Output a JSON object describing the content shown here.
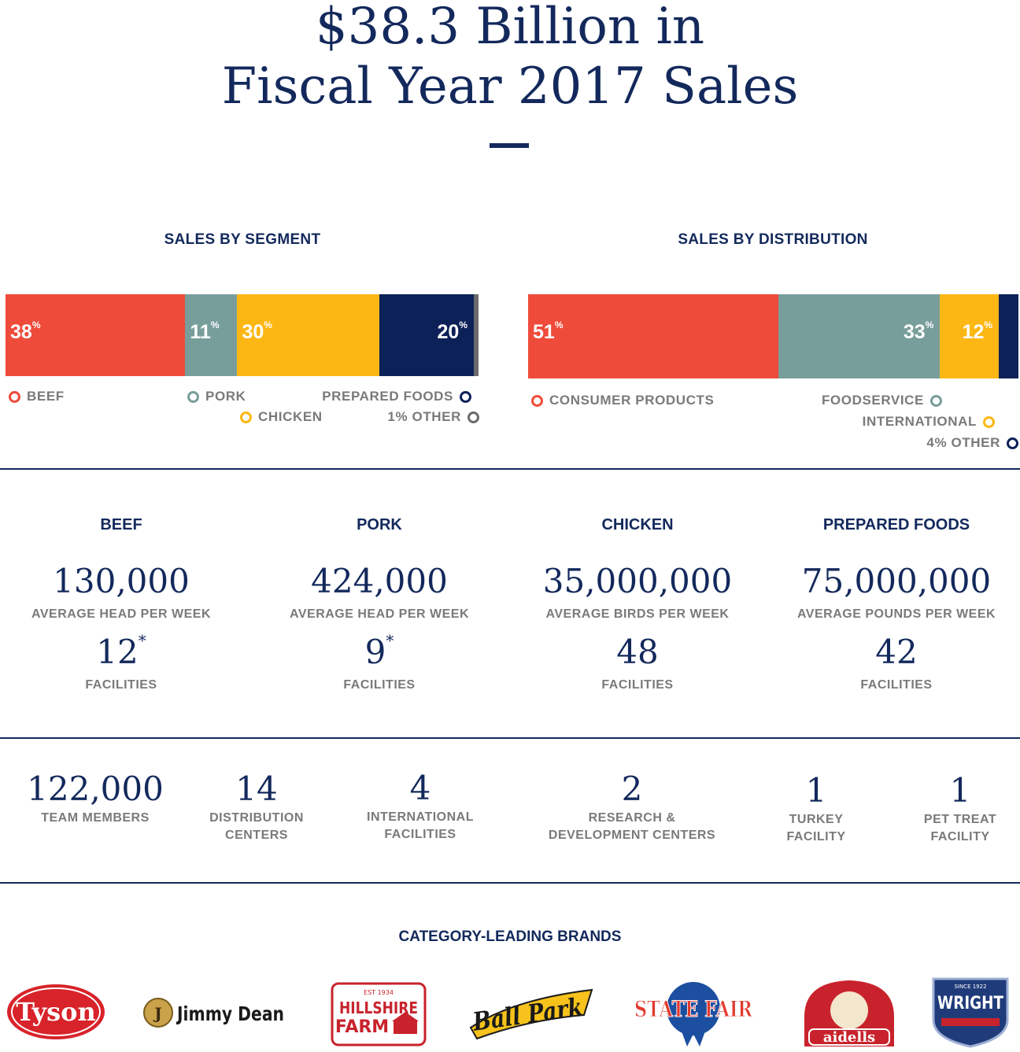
{
  "title": {
    "line1": "$38.3 Billion in",
    "line2": "Fiscal Year 2017 Sales"
  },
  "chart_data": [
    {
      "type": "bar",
      "title": "SALES BY SEGMENT",
      "unit": "%",
      "series": [
        {
          "name": "BEEF",
          "value": 38,
          "label": "38",
          "color": "#ef4b3a"
        },
        {
          "name": "PORK",
          "value": 11,
          "label": "11",
          "color": "#789e9b"
        },
        {
          "name": "CHICKEN",
          "value": 30,
          "label": "30",
          "color": "#fdb714"
        },
        {
          "name": "PREPARED FOODS",
          "value": 20,
          "label": "20",
          "color": "#0c2158"
        },
        {
          "name": "1% OTHER",
          "value": 1,
          "label": "",
          "color": "#6a6a6a"
        }
      ]
    },
    {
      "type": "bar",
      "title": "SALES BY DISTRIBUTION",
      "unit": "%",
      "series": [
        {
          "name": "CONSUMER PRODUCTS",
          "value": 51,
          "label": "51",
          "color": "#ef4b3a"
        },
        {
          "name": "FOODSERVICE",
          "value": 33,
          "label": "33",
          "color": "#789e9b"
        },
        {
          "name": "INTERNATIONAL",
          "value": 12,
          "label": "12",
          "color": "#fdb714"
        },
        {
          "name": "4% OTHER",
          "value": 4,
          "label": "",
          "color": "#0c2158"
        }
      ]
    }
  ],
  "segments": [
    {
      "category": "BEEF",
      "volume": "130,000",
      "volume_label": "AVERAGE HEAD PER WEEK",
      "facilities": "12",
      "note": "*",
      "facilities_label": "FACILITIES"
    },
    {
      "category": "PORK",
      "volume": "424,000",
      "volume_label": "AVERAGE HEAD PER WEEK",
      "facilities": "9",
      "note": "*",
      "facilities_label": "FACILITIES"
    },
    {
      "category": "CHICKEN",
      "volume": "35,000,000",
      "volume_label": "AVERAGE BIRDS PER WEEK",
      "facilities": "48",
      "note": "",
      "facilities_label": "FACILITIES"
    },
    {
      "category": "PREPARED FOODS",
      "volume": "75,000,000",
      "volume_label": "AVERAGE POUNDS PER WEEK",
      "facilities": "42",
      "note": "",
      "facilities_label": "FACILITIES"
    }
  ],
  "facts": [
    {
      "number": "122,000",
      "line1": "TEAM MEMBERS",
      "line2": ""
    },
    {
      "number": "14",
      "line1": "DISTRIBUTION",
      "line2": "CENTERS"
    },
    {
      "number": "4",
      "line1": "INTERNATIONAL",
      "line2": "FACILITIES"
    },
    {
      "number": "2",
      "line1": "RESEARCH &",
      "line2": "DEVELOPMENT CENTERS"
    },
    {
      "number": "1",
      "line1": "TURKEY",
      "line2": "FACILITY"
    },
    {
      "number": "1",
      "line1": "PET TREAT",
      "line2": "FACILITY"
    }
  ],
  "brands": {
    "heading": "CATEGORY-LEADING BRANDS",
    "items": [
      "Tyson",
      "Jimmy Dean",
      "HILLSHIRE FARM",
      "Ball Park",
      "STATE FAIR",
      "aidells",
      "WRIGHT"
    ]
  }
}
